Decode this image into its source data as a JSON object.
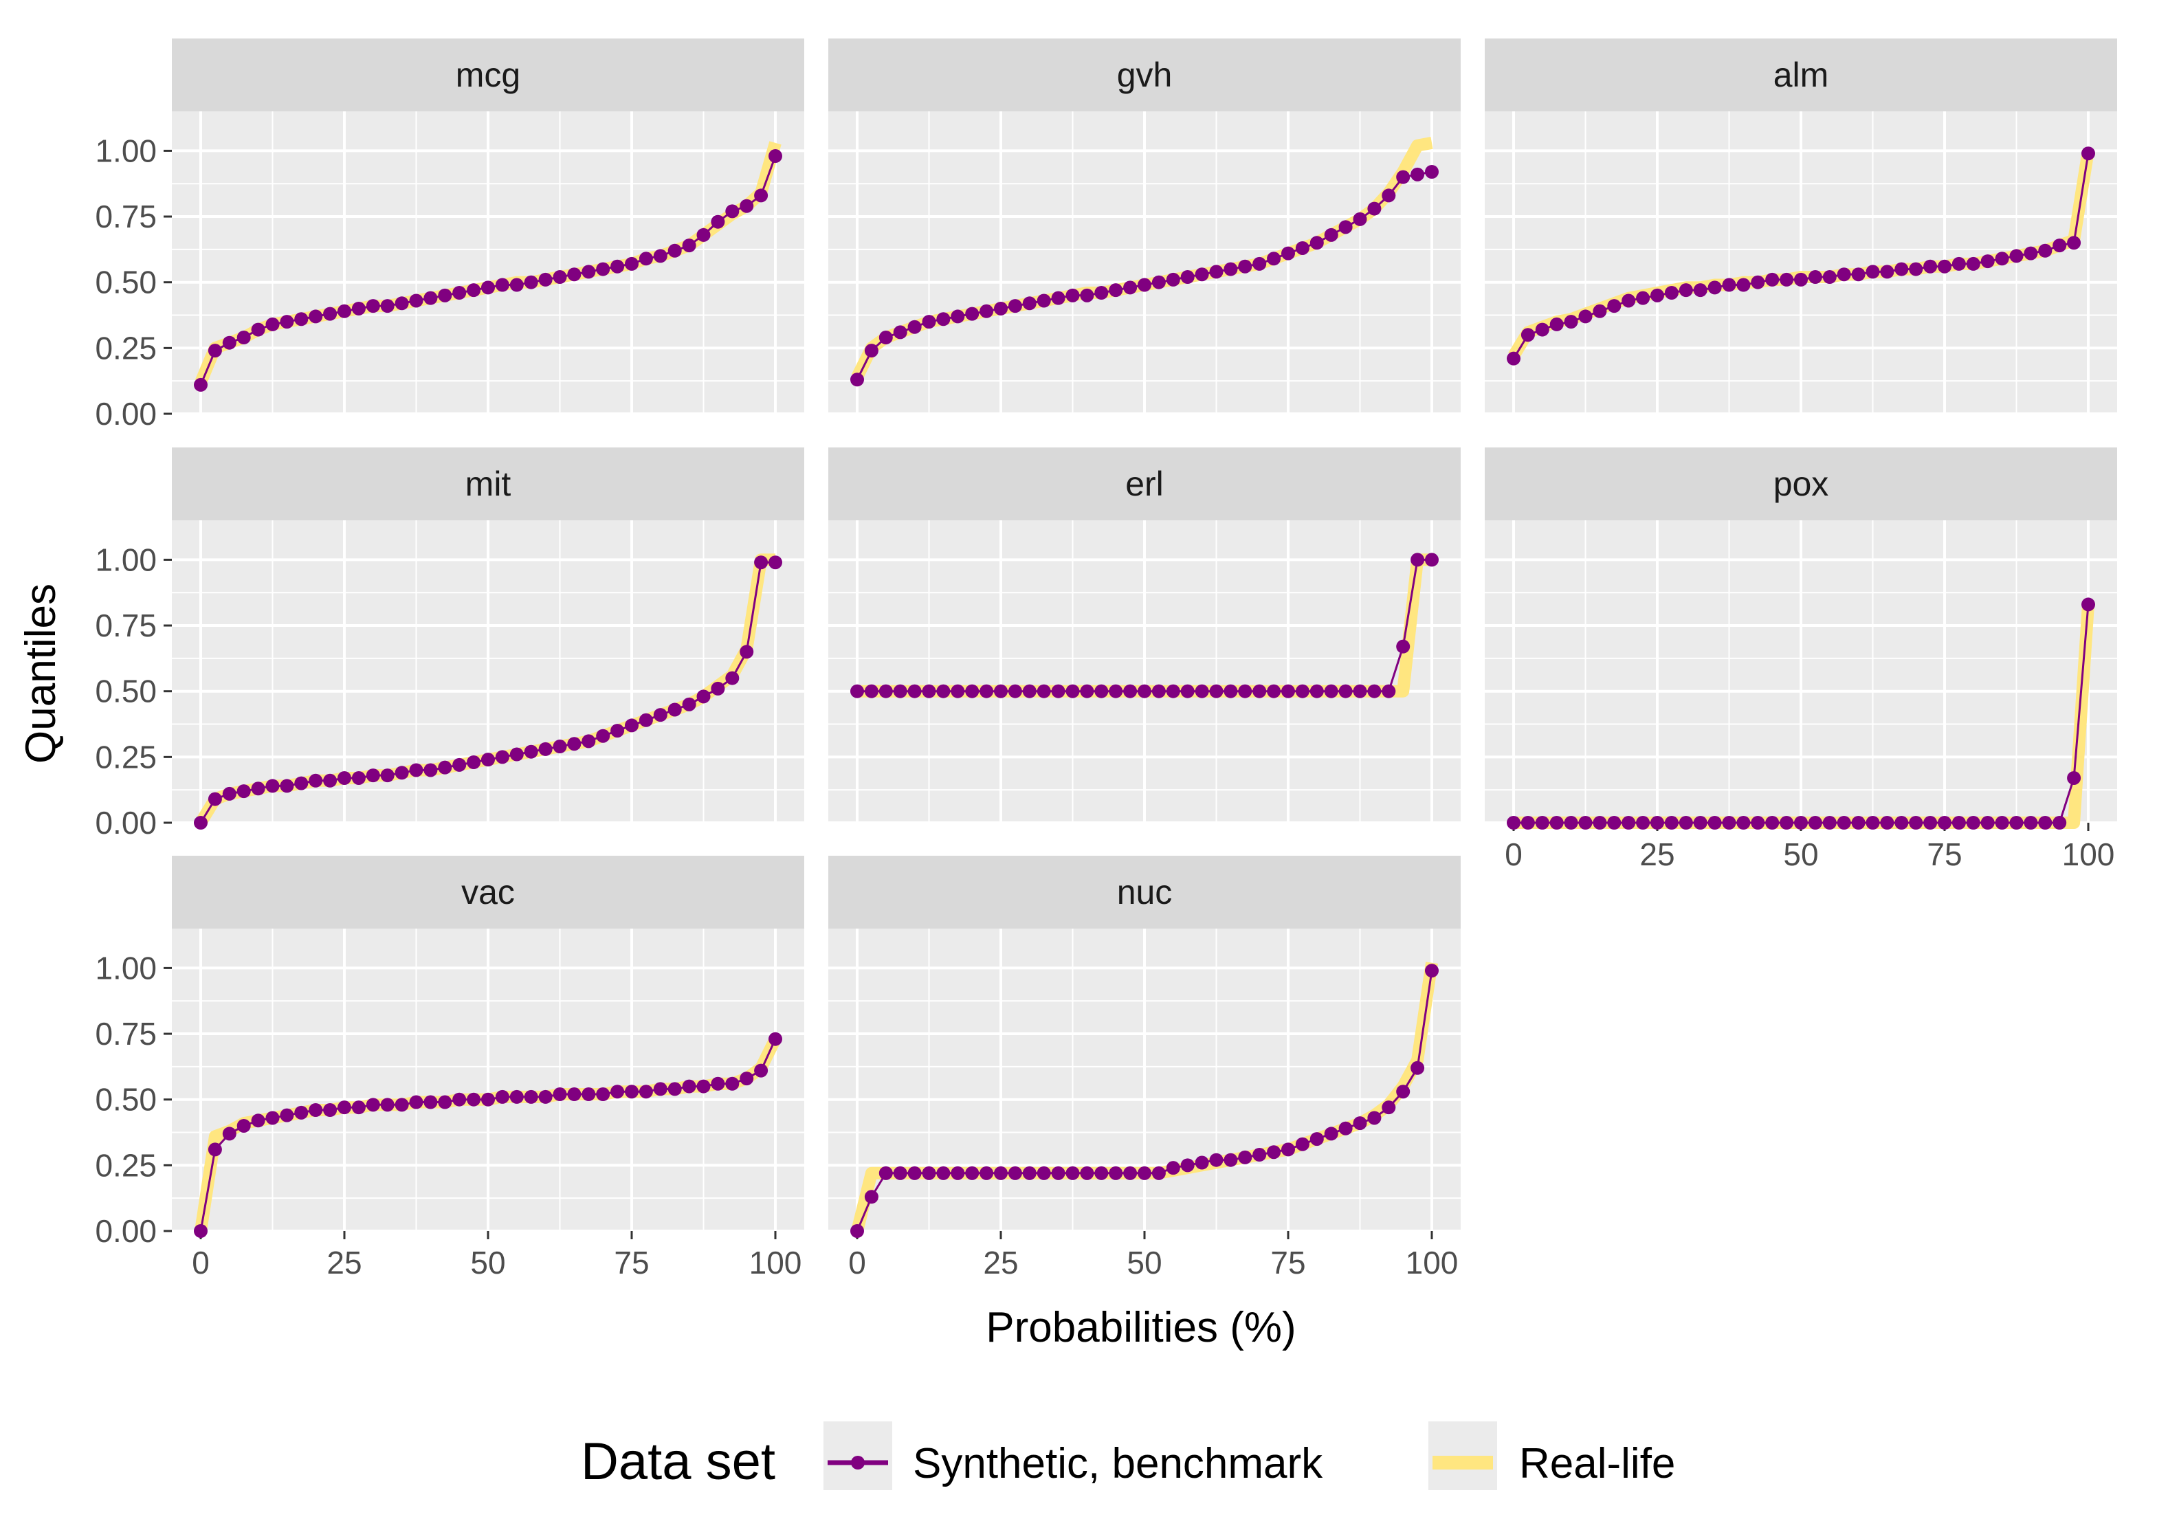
{
  "chart_data": {
    "type": "line",
    "layout": "faceted-3-columns",
    "xlabel": "Probabilities (%)",
    "ylabel": "Quantiles",
    "xlim": [
      0,
      100
    ],
    "ylim": [
      0,
      1.15
    ],
    "x_ticks": [
      0,
      25,
      50,
      75,
      100
    ],
    "y_ticks": [
      0.0,
      0.25,
      0.5,
      0.75,
      1.0
    ],
    "x_tick_labels": [
      "0",
      "25",
      "50",
      "75",
      "100"
    ],
    "y_tick_labels": [
      "0.00",
      "0.25",
      "0.50",
      "0.75",
      "1.00"
    ],
    "grid": true,
    "legend": {
      "title": "Data set",
      "position": "bottom",
      "entries": [
        {
          "name": "Synthetic, benchmark",
          "color": "#800080",
          "style": "line-with-points"
        },
        {
          "name": "Real-life",
          "color": "#FFE680",
          "style": "thick-line"
        }
      ]
    },
    "x_step": 2.5,
    "panels": [
      {
        "name": "mcg",
        "synthetic": [
          0.11,
          0.24,
          0.27,
          0.29,
          0.32,
          0.34,
          0.35,
          0.36,
          0.37,
          0.38,
          0.39,
          0.4,
          0.41,
          0.41,
          0.42,
          0.43,
          0.44,
          0.45,
          0.46,
          0.47,
          0.48,
          0.49,
          0.49,
          0.5,
          0.51,
          0.52,
          0.53,
          0.54,
          0.55,
          0.56,
          0.57,
          0.59,
          0.6,
          0.62,
          0.64,
          0.68,
          0.73,
          0.77,
          0.79,
          0.83,
          0.98
        ],
        "real": [
          0.12,
          0.25,
          0.27,
          0.29,
          0.32,
          0.34,
          0.35,
          0.36,
          0.37,
          0.38,
          0.39,
          0.4,
          0.41,
          0.41,
          0.42,
          0.43,
          0.44,
          0.45,
          0.46,
          0.47,
          0.48,
          0.49,
          0.5,
          0.5,
          0.51,
          0.52,
          0.53,
          0.54,
          0.55,
          0.56,
          0.57,
          0.59,
          0.6,
          0.62,
          0.64,
          0.68,
          0.72,
          0.76,
          0.79,
          0.84,
          1.03
        ]
      },
      {
        "name": "gvh",
        "synthetic": [
          0.13,
          0.24,
          0.29,
          0.31,
          0.33,
          0.35,
          0.36,
          0.37,
          0.38,
          0.39,
          0.4,
          0.41,
          0.42,
          0.43,
          0.44,
          0.45,
          0.45,
          0.46,
          0.47,
          0.48,
          0.49,
          0.5,
          0.51,
          0.52,
          0.53,
          0.54,
          0.55,
          0.56,
          0.57,
          0.59,
          0.61,
          0.63,
          0.65,
          0.68,
          0.71,
          0.74,
          0.78,
          0.83,
          0.9,
          0.91,
          0.92
        ],
        "real": [
          0.14,
          0.25,
          0.29,
          0.31,
          0.33,
          0.35,
          0.36,
          0.37,
          0.38,
          0.39,
          0.4,
          0.41,
          0.42,
          0.43,
          0.44,
          0.45,
          0.46,
          0.46,
          0.47,
          0.48,
          0.49,
          0.5,
          0.51,
          0.52,
          0.53,
          0.54,
          0.55,
          0.56,
          0.57,
          0.59,
          0.61,
          0.63,
          0.65,
          0.68,
          0.71,
          0.74,
          0.78,
          0.84,
          0.92,
          1.02,
          1.03
        ]
      },
      {
        "name": "alm",
        "synthetic": [
          0.21,
          0.3,
          0.32,
          0.34,
          0.35,
          0.37,
          0.39,
          0.41,
          0.43,
          0.44,
          0.45,
          0.46,
          0.47,
          0.47,
          0.48,
          0.49,
          0.49,
          0.5,
          0.51,
          0.51,
          0.51,
          0.52,
          0.52,
          0.53,
          0.53,
          0.54,
          0.54,
          0.55,
          0.55,
          0.56,
          0.56,
          0.57,
          0.57,
          0.58,
          0.59,
          0.6,
          0.61,
          0.62,
          0.64,
          0.65,
          0.99
        ],
        "real": [
          0.22,
          0.31,
          0.33,
          0.35,
          0.36,
          0.38,
          0.4,
          0.42,
          0.44,
          0.45,
          0.46,
          0.47,
          0.48,
          0.48,
          0.49,
          0.49,
          0.5,
          0.5,
          0.51,
          0.51,
          0.52,
          0.52,
          0.52,
          0.53,
          0.53,
          0.54,
          0.54,
          0.55,
          0.55,
          0.56,
          0.56,
          0.57,
          0.57,
          0.58,
          0.59,
          0.6,
          0.61,
          0.62,
          0.64,
          0.66,
          1.0
        ]
      },
      {
        "name": "mit",
        "synthetic": [
          0.0,
          0.09,
          0.11,
          0.12,
          0.13,
          0.14,
          0.14,
          0.15,
          0.16,
          0.16,
          0.17,
          0.17,
          0.18,
          0.18,
          0.19,
          0.2,
          0.2,
          0.21,
          0.22,
          0.23,
          0.24,
          0.25,
          0.26,
          0.27,
          0.28,
          0.29,
          0.3,
          0.31,
          0.33,
          0.35,
          0.37,
          0.39,
          0.41,
          0.43,
          0.45,
          0.48,
          0.51,
          0.55,
          0.65,
          0.99,
          0.99
        ],
        "real": [
          0.0,
          0.09,
          0.11,
          0.12,
          0.13,
          0.14,
          0.14,
          0.15,
          0.16,
          0.16,
          0.17,
          0.17,
          0.18,
          0.18,
          0.19,
          0.2,
          0.2,
          0.21,
          0.22,
          0.23,
          0.24,
          0.25,
          0.26,
          0.27,
          0.28,
          0.29,
          0.3,
          0.31,
          0.33,
          0.35,
          0.37,
          0.39,
          0.41,
          0.43,
          0.45,
          0.48,
          0.52,
          0.56,
          0.66,
          1.0,
          1.0
        ]
      },
      {
        "name": "erl",
        "synthetic": [
          0.5,
          0.5,
          0.5,
          0.5,
          0.5,
          0.5,
          0.5,
          0.5,
          0.5,
          0.5,
          0.5,
          0.5,
          0.5,
          0.5,
          0.5,
          0.5,
          0.5,
          0.5,
          0.5,
          0.5,
          0.5,
          0.5,
          0.5,
          0.5,
          0.5,
          0.5,
          0.5,
          0.5,
          0.5,
          0.5,
          0.5,
          0.5,
          0.5,
          0.5,
          0.5,
          0.5,
          0.5,
          0.5,
          0.67,
          1.0,
          1.0
        ],
        "real": [
          0.5,
          0.5,
          0.5,
          0.5,
          0.5,
          0.5,
          0.5,
          0.5,
          0.5,
          0.5,
          0.5,
          0.5,
          0.5,
          0.5,
          0.5,
          0.5,
          0.5,
          0.5,
          0.5,
          0.5,
          0.5,
          0.5,
          0.5,
          0.5,
          0.5,
          0.5,
          0.5,
          0.5,
          0.5,
          0.5,
          0.5,
          0.5,
          0.5,
          0.5,
          0.5,
          0.5,
          0.5,
          0.5,
          0.5,
          1.0,
          1.0
        ]
      },
      {
        "name": "pox",
        "synthetic": [
          0,
          0,
          0,
          0,
          0,
          0,
          0,
          0,
          0,
          0,
          0,
          0,
          0,
          0,
          0,
          0,
          0,
          0,
          0,
          0,
          0,
          0,
          0,
          0,
          0,
          0,
          0,
          0,
          0,
          0,
          0,
          0,
          0,
          0,
          0,
          0,
          0,
          0,
          0,
          0.17,
          0.83
        ],
        "real": [
          0,
          0,
          0,
          0,
          0,
          0,
          0,
          0,
          0,
          0,
          0,
          0,
          0,
          0,
          0,
          0,
          0,
          0,
          0,
          0,
          0,
          0,
          0,
          0,
          0,
          0,
          0,
          0,
          0,
          0,
          0,
          0,
          0,
          0,
          0,
          0,
          0,
          0,
          0,
          0,
          0.83
        ]
      },
      {
        "name": "vac",
        "synthetic": [
          0.0,
          0.31,
          0.37,
          0.4,
          0.42,
          0.43,
          0.44,
          0.45,
          0.46,
          0.46,
          0.47,
          0.47,
          0.48,
          0.48,
          0.48,
          0.49,
          0.49,
          0.49,
          0.5,
          0.5,
          0.5,
          0.51,
          0.51,
          0.51,
          0.51,
          0.52,
          0.52,
          0.52,
          0.52,
          0.53,
          0.53,
          0.53,
          0.54,
          0.54,
          0.55,
          0.55,
          0.56,
          0.56,
          0.58,
          0.61,
          0.73
        ],
        "real": [
          0.0,
          0.36,
          0.38,
          0.41,
          0.42,
          0.43,
          0.44,
          0.45,
          0.46,
          0.46,
          0.47,
          0.47,
          0.48,
          0.48,
          0.48,
          0.49,
          0.49,
          0.49,
          0.5,
          0.5,
          0.5,
          0.51,
          0.51,
          0.51,
          0.51,
          0.52,
          0.52,
          0.52,
          0.52,
          0.53,
          0.53,
          0.53,
          0.54,
          0.54,
          0.55,
          0.55,
          0.56,
          0.56,
          0.58,
          0.62,
          0.73
        ]
      },
      {
        "name": "nuc",
        "synthetic": [
          0.0,
          0.13,
          0.22,
          0.22,
          0.22,
          0.22,
          0.22,
          0.22,
          0.22,
          0.22,
          0.22,
          0.22,
          0.22,
          0.22,
          0.22,
          0.22,
          0.22,
          0.22,
          0.22,
          0.22,
          0.22,
          0.22,
          0.24,
          0.25,
          0.26,
          0.27,
          0.27,
          0.28,
          0.29,
          0.3,
          0.31,
          0.33,
          0.35,
          0.37,
          0.39,
          0.41,
          0.43,
          0.47,
          0.53,
          0.62,
          0.99
        ],
        "real": [
          0.0,
          0.22,
          0.22,
          0.22,
          0.22,
          0.22,
          0.22,
          0.22,
          0.22,
          0.22,
          0.22,
          0.22,
          0.22,
          0.22,
          0.22,
          0.22,
          0.22,
          0.22,
          0.22,
          0.22,
          0.22,
          0.22,
          0.23,
          0.24,
          0.25,
          0.26,
          0.27,
          0.28,
          0.29,
          0.3,
          0.31,
          0.33,
          0.35,
          0.37,
          0.39,
          0.41,
          0.44,
          0.48,
          0.55,
          0.65,
          1.02
        ]
      }
    ]
  }
}
